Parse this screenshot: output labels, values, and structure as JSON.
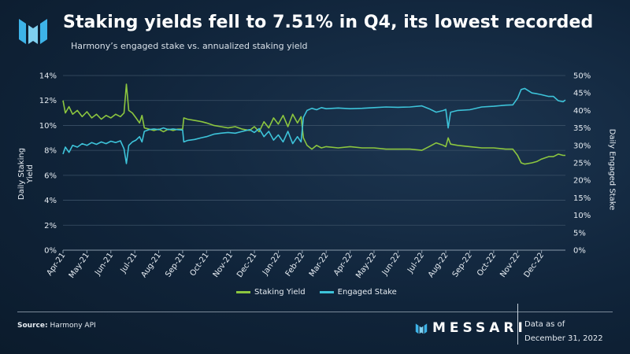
{
  "title": "Staking yields fell to 7.51% in Q4, its lowest recorded",
  "subtitle": "Harmony’s engaged stake vs. annualized staking yield",
  "colors": {
    "yield": "#8cc63f",
    "stake": "#3dc3d9",
    "grid": "#3b5066",
    "text": "#e6ecf2",
    "logo": "#3db3e8"
  },
  "footer": {
    "source_label": "Source:",
    "source_text": "Harmony API",
    "brand": "MESSARI",
    "as_of_label": "Data as of",
    "as_of_date": "December 31, 2022"
  },
  "chart_data": {
    "type": "line",
    "title": "Staking yields fell to 7.51% in Q4, its lowest recorded",
    "x_tick_labels": [
      "Apr-21",
      "May-21",
      "Jun-21",
      "Jul-21",
      "Aug-21",
      "Sep-21",
      "Oct-21",
      "Nov-21",
      "Dec-21",
      "Jan-22",
      "Feb-22",
      "Mar-22",
      "Apr-22",
      "May-22",
      "Jun-22",
      "Jul-22",
      "Aug-22",
      "Sep-22",
      "Oct-22",
      "Nov-22",
      "Dec-22"
    ],
    "x_range_months": [
      0,
      21
    ],
    "y_left": {
      "label": "Daily Staking Yield",
      "min": 0,
      "max": 14,
      "ticks": [
        "0%",
        "2%",
        "4%",
        "6%",
        "8%",
        "10%",
        "12%",
        "14%"
      ]
    },
    "y_right": {
      "label": "Daily Engaged Stake",
      "min": 0,
      "max": 50,
      "ticks": [
        "0%",
        "5%",
        "10%",
        "15%",
        "20%",
        "25%",
        "30%",
        "35%",
        "40%",
        "45%",
        "50%"
      ]
    },
    "grid": "horizontal",
    "legend_position": "bottom-center",
    "series": [
      {
        "name": "Staking Yield",
        "axis": "left",
        "points": [
          [
            0.0,
            12.0
          ],
          [
            0.1,
            11.0
          ],
          [
            0.25,
            11.5
          ],
          [
            0.4,
            10.9
          ],
          [
            0.6,
            11.2
          ],
          [
            0.8,
            10.7
          ],
          [
            1.0,
            11.1
          ],
          [
            1.2,
            10.6
          ],
          [
            1.4,
            10.9
          ],
          [
            1.6,
            10.5
          ],
          [
            1.8,
            10.8
          ],
          [
            2.0,
            10.6
          ],
          [
            2.2,
            10.9
          ],
          [
            2.4,
            10.7
          ],
          [
            2.55,
            11.0
          ],
          [
            2.65,
            13.3
          ],
          [
            2.75,
            11.2
          ],
          [
            2.9,
            11.0
          ],
          [
            3.05,
            10.6
          ],
          [
            3.2,
            10.2
          ],
          [
            3.3,
            10.8
          ],
          [
            3.4,
            9.8
          ],
          [
            3.6,
            9.7
          ],
          [
            3.8,
            9.6
          ],
          [
            4.0,
            9.7
          ],
          [
            4.2,
            9.5
          ],
          [
            4.4,
            9.7
          ],
          [
            4.6,
            9.6
          ],
          [
            4.8,
            9.7
          ],
          [
            5.0,
            9.7
          ],
          [
            5.05,
            10.6
          ],
          [
            5.2,
            10.5
          ],
          [
            5.5,
            10.4
          ],
          [
            5.8,
            10.3
          ],
          [
            6.0,
            10.2
          ],
          [
            6.3,
            10.0
          ],
          [
            6.6,
            9.9
          ],
          [
            6.9,
            9.8
          ],
          [
            7.2,
            9.9
          ],
          [
            7.5,
            9.7
          ],
          [
            7.8,
            9.6
          ],
          [
            8.0,
            9.9
          ],
          [
            8.2,
            9.5
          ],
          [
            8.4,
            10.3
          ],
          [
            8.6,
            9.8
          ],
          [
            8.8,
            10.6
          ],
          [
            9.0,
            10.1
          ],
          [
            9.2,
            10.8
          ],
          [
            9.4,
            9.9
          ],
          [
            9.6,
            10.9
          ],
          [
            9.8,
            10.2
          ],
          [
            9.95,
            10.7
          ],
          [
            10.05,
            9.0
          ],
          [
            10.2,
            8.4
          ],
          [
            10.4,
            8.1
          ],
          [
            10.6,
            8.4
          ],
          [
            10.8,
            8.2
          ],
          [
            11.0,
            8.3
          ],
          [
            11.5,
            8.2
          ],
          [
            12.0,
            8.3
          ],
          [
            12.5,
            8.2
          ],
          [
            13.0,
            8.2
          ],
          [
            13.5,
            8.1
          ],
          [
            14.0,
            8.1
          ],
          [
            14.5,
            8.1
          ],
          [
            15.0,
            8.0
          ],
          [
            15.3,
            8.3
          ],
          [
            15.6,
            8.6
          ],
          [
            15.9,
            8.4
          ],
          [
            16.0,
            8.3
          ],
          [
            16.1,
            9.0
          ],
          [
            16.2,
            8.5
          ],
          [
            16.5,
            8.4
          ],
          [
            17.0,
            8.3
          ],
          [
            17.5,
            8.2
          ],
          [
            18.0,
            8.2
          ],
          [
            18.5,
            8.1
          ],
          [
            18.8,
            8.1
          ],
          [
            19.0,
            7.6
          ],
          [
            19.15,
            7.0
          ],
          [
            19.3,
            6.9
          ],
          [
            19.6,
            7.0
          ],
          [
            19.8,
            7.1
          ],
          [
            20.0,
            7.3
          ],
          [
            20.3,
            7.5
          ],
          [
            20.5,
            7.5
          ],
          [
            20.7,
            7.7
          ],
          [
            20.9,
            7.6
          ],
          [
            21.0,
            7.6
          ]
        ]
      },
      {
        "name": "Engaged Stake",
        "axis": "right",
        "points": [
          [
            0.0,
            27.5
          ],
          [
            0.1,
            29.5
          ],
          [
            0.25,
            28.0
          ],
          [
            0.4,
            30.0
          ],
          [
            0.6,
            29.5
          ],
          [
            0.8,
            30.5
          ],
          [
            1.0,
            30.0
          ],
          [
            1.2,
            30.8
          ],
          [
            1.4,
            30.3
          ],
          [
            1.6,
            31.0
          ],
          [
            1.8,
            30.5
          ],
          [
            2.0,
            31.2
          ],
          [
            2.2,
            30.8
          ],
          [
            2.4,
            31.3
          ],
          [
            2.55,
            29.0
          ],
          [
            2.65,
            24.8
          ],
          [
            2.75,
            30.0
          ],
          [
            2.9,
            31.0
          ],
          [
            3.05,
            31.5
          ],
          [
            3.2,
            32.5
          ],
          [
            3.3,
            31.0
          ],
          [
            3.4,
            34.0
          ],
          [
            3.6,
            34.5
          ],
          [
            3.8,
            34.7
          ],
          [
            4.0,
            34.5
          ],
          [
            4.2,
            35.0
          ],
          [
            4.4,
            34.5
          ],
          [
            4.6,
            34.7
          ],
          [
            4.8,
            34.5
          ],
          [
            5.0,
            34.4
          ],
          [
            5.05,
            31.0
          ],
          [
            5.2,
            31.4
          ],
          [
            5.5,
            31.7
          ],
          [
            5.8,
            32.2
          ],
          [
            6.0,
            32.5
          ],
          [
            6.3,
            33.2
          ],
          [
            6.6,
            33.5
          ],
          [
            6.9,
            33.7
          ],
          [
            7.2,
            33.5
          ],
          [
            7.5,
            34.0
          ],
          [
            7.8,
            34.5
          ],
          [
            8.0,
            33.7
          ],
          [
            8.2,
            34.8
          ],
          [
            8.4,
            32.5
          ],
          [
            8.6,
            34.0
          ],
          [
            8.8,
            31.5
          ],
          [
            9.0,
            33.0
          ],
          [
            9.2,
            31.0
          ],
          [
            9.4,
            34.0
          ],
          [
            9.6,
            30.5
          ],
          [
            9.8,
            32.5
          ],
          [
            9.95,
            31.0
          ],
          [
            10.05,
            38.0
          ],
          [
            10.2,
            40.0
          ],
          [
            10.4,
            40.6
          ],
          [
            10.6,
            40.2
          ],
          [
            10.8,
            40.8
          ],
          [
            11.0,
            40.5
          ],
          [
            11.5,
            40.7
          ],
          [
            12.0,
            40.5
          ],
          [
            12.5,
            40.6
          ],
          [
            13.0,
            40.8
          ],
          [
            13.5,
            41.0
          ],
          [
            14.0,
            40.9
          ],
          [
            14.5,
            41.0
          ],
          [
            15.0,
            41.3
          ],
          [
            15.3,
            40.5
          ],
          [
            15.6,
            39.5
          ],
          [
            15.9,
            40.0
          ],
          [
            16.0,
            40.3
          ],
          [
            16.1,
            35.0
          ],
          [
            16.2,
            39.5
          ],
          [
            16.5,
            40.0
          ],
          [
            17.0,
            40.2
          ],
          [
            17.5,
            41.0
          ],
          [
            18.0,
            41.2
          ],
          [
            18.5,
            41.5
          ],
          [
            18.8,
            41.6
          ],
          [
            19.0,
            43.5
          ],
          [
            19.15,
            46.0
          ],
          [
            19.3,
            46.3
          ],
          [
            19.6,
            45.0
          ],
          [
            19.8,
            44.8
          ],
          [
            20.0,
            44.5
          ],
          [
            20.3,
            44.0
          ],
          [
            20.5,
            44.0
          ],
          [
            20.7,
            42.8
          ],
          [
            20.9,
            42.5
          ],
          [
            21.0,
            43.0
          ]
        ]
      }
    ]
  }
}
